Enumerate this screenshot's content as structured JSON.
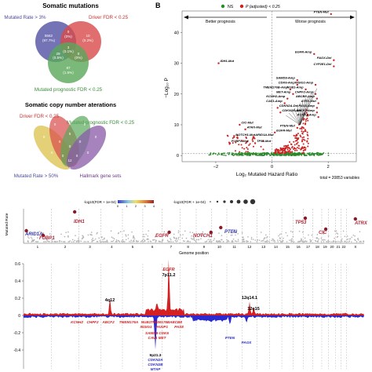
{
  "panelA": {
    "venn1": {
      "title": "Somatic mutations",
      "label_mutated": "Mutated Rate > 3%",
      "label_driver": "Driver FDR < 0.25",
      "label_prognostic": "Mutated prognostic FDR < 0.25",
      "counts": {
        "mutated_only": "5562",
        "mutated_only_pct": "(97.7%)",
        "driver_only": "10",
        "driver_only_pct": "(0.2%)",
        "mut_driver": "0",
        "mut_driver_pct": "(0%)",
        "prog_only": "87",
        "prog_only_pct": "(1.5%)",
        "mut_prog": "29",
        "mut_prog_pct": "(0.5%)",
        "driver_prog": "0",
        "driver_prog_pct": "(0%)",
        "center": "3",
        "center_pct": "(0.1%)"
      },
      "colors": {
        "mutated": "#5a5aa8",
        "driver": "#d84a4a",
        "prognostic": "#5aa85a"
      }
    },
    "venn2": {
      "title": "Somatic copy number aterations",
      "label_driver": "Driver FDR < 0.25",
      "label_prognostic": "Mutated prognostic FDR < 0.25",
      "label_mutated": "Mutated Rate > 50%",
      "label_hallmark": "Hallmark gene sets",
      "numbers": [
        "0",
        "0",
        "0",
        "0",
        "0",
        "5",
        "0",
        "0",
        "0",
        "0",
        "0",
        "0",
        "0",
        "12",
        "0"
      ],
      "colors": {
        "yellow": "#d9c04a",
        "red": "#d84a4a",
        "green": "#5aa85a",
        "purple": "#8a5aa8"
      }
    }
  },
  "panelB": {
    "letter": "B",
    "legend_ns": "NS",
    "legend_sig": "P (adjusted) < 0.25",
    "arrow_left": "Better prognosis",
    "arrow_right": "Worse prognosis",
    "ylabel": "−Log₁₀ P",
    "xlabel": "Log₂ Mutated Hazard Ratio",
    "total": "total = 20853 variables",
    "yticks": [
      "0",
      "10",
      "20",
      "30",
      "40"
    ],
    "xticks": [
      "−2",
      "0",
      "2"
    ],
    "labels": [
      {
        "t": "PTEN-Mut",
        "x": 2.1,
        "y": 46
      },
      {
        "t": "EGFR-Amp",
        "x": 1.5,
        "y": 33
      },
      {
        "t": "PAOX-Del",
        "x": 2.2,
        "y": 31
      },
      {
        "t": "CYP2E1-Del",
        "x": 2.2,
        "y": 29
      },
      {
        "t": "IDH1-Mut",
        "x": -1.9,
        "y": 30
      },
      {
        "t": "SAMD9-Amp",
        "x": 0.9,
        "y": 24.5
      },
      {
        "t": "CDK6-Amp",
        "x": 0.9,
        "y": 23
      },
      {
        "t": "INSIG1-Amp",
        "x": 1.55,
        "y": 23
      },
      {
        "t": "TMEM176B-Amp",
        "x": 0.65,
        "y": 21.5
      },
      {
        "t": "NUB1-Amp",
        "x": 1.2,
        "y": 21.5
      },
      {
        "t": "MET-Amp",
        "x": 0.75,
        "y": 20
      },
      {
        "t": "CHPF2-Amp",
        "x": 1.55,
        "y": 20
      },
      {
        "t": "KCNH2-Amp",
        "x": 0.55,
        "y": 18.5
      },
      {
        "t": "ABCB8-Amp",
        "x": 1.6,
        "y": 18.5
      },
      {
        "t": "CAV1-Amp",
        "x": 0.45,
        "y": 17
      },
      {
        "t": "ATRX-Mut",
        "x": 1.65,
        "y": 17
      },
      {
        "t": "CDKN2A-Del",
        "x": 0.2,
        "y": 15.5
      },
      {
        "t": "PAX8-Amp",
        "x": 1.6,
        "y": 15.5
      },
      {
        "t": "CDKN2B-Del",
        "x": 0.3,
        "y": 14
      },
      {
        "t": "ABCF2-Amp",
        "x": 1.6,
        "y": 14
      },
      {
        "t": "KCNK3-Amp",
        "x": 1.65,
        "y": 12.5
      },
      {
        "t": "CIC-Mut",
        "x": -1.15,
        "y": 10
      },
      {
        "t": "ATRX-Mut",
        "x": -0.95,
        "y": 8.5
      },
      {
        "t": "NOTCH1-Mut",
        "x": -1.35,
        "y": 6
      },
      {
        "t": "ARID1A-Mut",
        "x": -0.65,
        "y": 6
      },
      {
        "t": "FUBP1-Mut",
        "x": -1.5,
        "y": 4
      },
      {
        "t": "TP53-Mut",
        "x": -0.6,
        "y": 4
      },
      {
        "t": "EGFR-Mut",
        "x": 0.1,
        "y": 7.5
      },
      {
        "t": "PTEN-Mut",
        "x": 0.9,
        "y": 9
      }
    ],
    "ns_color": "#2a8a2a",
    "sig_color": "#cc2222"
  },
  "panelC": {
    "ylabel": "Mutated Rate",
    "legend_title": "-log10(FDR + 1e-04)",
    "legend_ticks": [
      "0",
      "1",
      "2",
      "3",
      "4"
    ],
    "legend_size_title": "-log10(FDR + 1e-04)",
    "xlabel": "Genome position",
    "chromosomes": [
      "1",
      "2",
      "3",
      "4",
      "5",
      "6",
      "7",
      "8",
      "9",
      "10",
      "11",
      "12",
      "13",
      "14",
      "15",
      "16",
      "17",
      "18",
      "19",
      "20",
      "21",
      "22",
      "X"
    ],
    "gene_labels": [
      {
        "t": "ARID1A",
        "color": "#3a3ab0"
      },
      {
        "t": "FUBP1",
        "color": "#b02a3a"
      },
      {
        "t": "IDH1",
        "color": "#b02a3a"
      },
      {
        "t": "EGFR",
        "color": "#b02a3a"
      },
      {
        "t": "NOTCH1",
        "color": "#b02a3a"
      },
      {
        "t": "PTEN",
        "color": "#3a3ab0"
      },
      {
        "t": "TP53",
        "color": "#b02a3a"
      },
      {
        "t": "CIC",
        "color": "#b02a3a"
      },
      {
        "t": "ATRX",
        "color": "#b02a3a"
      }
    ]
  },
  "panelD": {
    "peaks_up": [
      "EGFR",
      "7p11.2",
      "4q12",
      "12q14.1",
      "12q15"
    ],
    "peaks_down": [
      "9p21.3",
      "CDKN2A",
      "CDKN2B",
      "MTAP"
    ],
    "genes_red": [
      "KCNH2",
      "CHPF2",
      "ABCF2",
      "TMEM176A",
      "NUB1",
      "TMEM176B",
      "ABCB8",
      "INSIG1",
      "PAXIP1",
      "PAX8"
    ],
    "genes_red2": [
      "SAMD9",
      "CDK6",
      "CAV1",
      "MET"
    ],
    "genes_blue": [
      "PTEN",
      "PAOX"
    ],
    "yticks": [
      "0.6",
      "0.4",
      "0.2",
      "0",
      "-0.2",
      "-0.4"
    ],
    "red": "#d42020",
    "blue": "#2a2ad0"
  }
}
